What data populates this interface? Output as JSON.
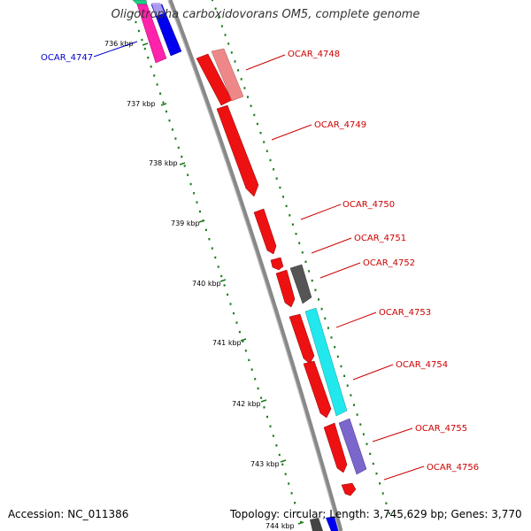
{
  "title": "Oligotropha carboxidovorans OM5, complete genome",
  "footer": {
    "accession": "Accession: NC_011386",
    "topology": "Topology: circular; Length: 3,745,629 bp; Genes: 3,770"
  },
  "colors": {
    "backbone": "#8c8c8c",
    "tick": "#1a7a1a",
    "label_forward": "#cc0000",
    "label_reverse": "#0000cc"
  },
  "kbp_marks": [
    {
      "label": "736 kbp"
    },
    {
      "label": "737 kbp"
    },
    {
      "label": "738 kbp"
    },
    {
      "label": "739 kbp"
    },
    {
      "label": "740 kbp"
    },
    {
      "label": "741 kbp"
    },
    {
      "label": "742 kbp"
    },
    {
      "label": "743 kbp"
    },
    {
      "label": "744 kbp"
    }
  ],
  "gene_labels": [
    {
      "name": "OCAR_4747",
      "color": "#0000cc"
    },
    {
      "name": "OCAR_4748",
      "color": "#cc0000"
    },
    {
      "name": "OCAR_4749",
      "color": "#cc0000"
    },
    {
      "name": "OCAR_4750",
      "color": "#cc0000"
    },
    {
      "name": "OCAR_4751",
      "color": "#cc0000"
    },
    {
      "name": "OCAR_4752",
      "color": "#cc0000"
    },
    {
      "name": "OCAR_4753",
      "color": "#cc0000"
    },
    {
      "name": "OCAR_4754",
      "color": "#cc0000"
    },
    {
      "name": "OCAR_4755",
      "color": "#cc0000"
    },
    {
      "name": "OCAR_4756",
      "color": "#cc0000"
    }
  ]
}
